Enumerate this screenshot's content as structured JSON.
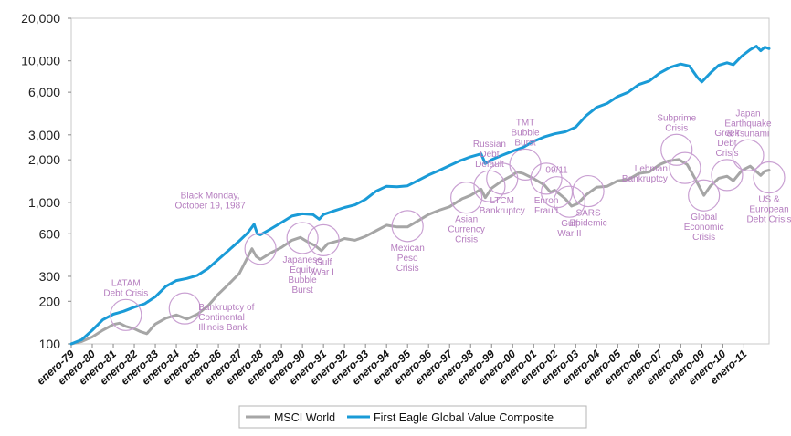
{
  "chart_data": {
    "type": "line",
    "title": "",
    "xlabel": "",
    "ylabel": "",
    "yscale": "log",
    "ylim": [
      100,
      20000
    ],
    "yticks": [
      {
        "value": 100,
        "label": "100"
      },
      {
        "value": 200,
        "label": "200"
      },
      {
        "value": 300,
        "label": "300"
      },
      {
        "value": 600,
        "label": "600"
      },
      {
        "value": 1000,
        "label": "1,000"
      },
      {
        "value": 2000,
        "label": "2,000"
      },
      {
        "value": 3000,
        "label": "3,000"
      },
      {
        "value": 6000,
        "label": "6,000"
      },
      {
        "value": 10000,
        "label": "10,000"
      },
      {
        "value": 20000,
        "label": "20,000"
      }
    ],
    "xlim": [
      1979,
      2012.2
    ],
    "xticks": [
      {
        "value": 1979,
        "label": "enero-79"
      },
      {
        "value": 1980,
        "label": "enero-80"
      },
      {
        "value": 1981,
        "label": "enero-81"
      },
      {
        "value": 1982,
        "label": "enero-82"
      },
      {
        "value": 1983,
        "label": "enero-83"
      },
      {
        "value": 1984,
        "label": "enero-84"
      },
      {
        "value": 1985,
        "label": "enero-85"
      },
      {
        "value": 1986,
        "label": "enero-86"
      },
      {
        "value": 1987,
        "label": "enero-87"
      },
      {
        "value": 1988,
        "label": "enero-88"
      },
      {
        "value": 1989,
        "label": "enero-89"
      },
      {
        "value": 1990,
        "label": "enero-90"
      },
      {
        "value": 1991,
        "label": "enero-91"
      },
      {
        "value": 1992,
        "label": "enero-92"
      },
      {
        "value": 1993,
        "label": "enero-93"
      },
      {
        "value": 1994,
        "label": "enero-94"
      },
      {
        "value": 1995,
        "label": "enero-95"
      },
      {
        "value": 1996,
        "label": "enero-96"
      },
      {
        "value": 1997,
        "label": "enero-97"
      },
      {
        "value": 1998,
        "label": "enero-98"
      },
      {
        "value": 1999,
        "label": "enero-99"
      },
      {
        "value": 2000,
        "label": "enero-00"
      },
      {
        "value": 2001,
        "label": "enero-01"
      },
      {
        "value": 2002,
        "label": "enero-02"
      },
      {
        "value": 2003,
        "label": "enero-03"
      },
      {
        "value": 2004,
        "label": "enero-04"
      },
      {
        "value": 2005,
        "label": "enero-05"
      },
      {
        "value": 2006,
        "label": "enero-06"
      },
      {
        "value": 2007,
        "label": "enero-07"
      },
      {
        "value": 2008,
        "label": "enero-08"
      },
      {
        "value": 2009,
        "label": "enero-09"
      },
      {
        "value": 2010,
        "label": "enero-10"
      },
      {
        "value": 2011,
        "label": "enero-11"
      }
    ],
    "legend": "bottom-center",
    "series": [
      {
        "name": "MSCI World",
        "color": "#a6a6a6",
        "points": [
          [
            1979.0,
            100
          ],
          [
            1979.5,
            104
          ],
          [
            1980.0,
            112
          ],
          [
            1980.5,
            125
          ],
          [
            1981.0,
            137
          ],
          [
            1981.3,
            140
          ],
          [
            1981.6,
            133
          ],
          [
            1982.0,
            128
          ],
          [
            1982.3,
            122
          ],
          [
            1982.6,
            118
          ],
          [
            1983.0,
            138
          ],
          [
            1983.5,
            152
          ],
          [
            1984.0,
            160
          ],
          [
            1984.5,
            150
          ],
          [
            1985.0,
            162
          ],
          [
            1985.5,
            185
          ],
          [
            1986.0,
            225
          ],
          [
            1986.5,
            265
          ],
          [
            1987.0,
            315
          ],
          [
            1987.3,
            385
          ],
          [
            1987.6,
            470
          ],
          [
            1987.8,
            415
          ],
          [
            1988.0,
            395
          ],
          [
            1988.5,
            440
          ],
          [
            1989.0,
            480
          ],
          [
            1989.5,
            540
          ],
          [
            1989.9,
            565
          ],
          [
            1990.3,
            520
          ],
          [
            1990.6,
            495
          ],
          [
            1990.9,
            455
          ],
          [
            1991.2,
            510
          ],
          [
            1991.5,
            525
          ],
          [
            1991.8,
            540
          ],
          [
            1992.0,
            555
          ],
          [
            1992.5,
            540
          ],
          [
            1993.0,
            575
          ],
          [
            1993.5,
            630
          ],
          [
            1994.0,
            690
          ],
          [
            1994.5,
            670
          ],
          [
            1995.0,
            670
          ],
          [
            1995.5,
            740
          ],
          [
            1996.0,
            820
          ],
          [
            1996.5,
            880
          ],
          [
            1997.0,
            930
          ],
          [
            1997.6,
            1060
          ],
          [
            1998.0,
            1120
          ],
          [
            1998.5,
            1240
          ],
          [
            1998.7,
            1080
          ],
          [
            1999.0,
            1260
          ],
          [
            1999.5,
            1420
          ],
          [
            2000.0,
            1560
          ],
          [
            2000.2,
            1640
          ],
          [
            2000.5,
            1600
          ],
          [
            2001.0,
            1470
          ],
          [
            2001.5,
            1330
          ],
          [
            2001.8,
            1180
          ],
          [
            2002.0,
            1220
          ],
          [
            2002.5,
            1060
          ],
          [
            2002.8,
            940
          ],
          [
            2003.1,
            980
          ],
          [
            2003.5,
            1130
          ],
          [
            2004.0,
            1280
          ],
          [
            2004.5,
            1300
          ],
          [
            2005.0,
            1420
          ],
          [
            2005.5,
            1450
          ],
          [
            2006.0,
            1600
          ],
          [
            2006.5,
            1640
          ],
          [
            2007.0,
            1850
          ],
          [
            2007.4,
            1960
          ],
          [
            2007.9,
            2010
          ],
          [
            2008.3,
            1850
          ],
          [
            2008.7,
            1450
          ],
          [
            2009.1,
            1120
          ],
          [
            2009.4,
            1300
          ],
          [
            2009.8,
            1480
          ],
          [
            2010.2,
            1530
          ],
          [
            2010.5,
            1420
          ],
          [
            2010.9,
            1680
          ],
          [
            2011.3,
            1800
          ],
          [
            2011.6,
            1650
          ],
          [
            2011.8,
            1550
          ],
          [
            2012.0,
            1660
          ],
          [
            2012.2,
            1690
          ]
        ]
      },
      {
        "name": "First Eagle Global Value Composite",
        "color": "#1a9bd7",
        "points": [
          [
            1979.0,
            100
          ],
          [
            1979.5,
            107
          ],
          [
            1980.0,
            125
          ],
          [
            1980.5,
            148
          ],
          [
            1981.0,
            162
          ],
          [
            1981.5,
            170
          ],
          [
            1982.0,
            182
          ],
          [
            1982.5,
            192
          ],
          [
            1983.0,
            215
          ],
          [
            1983.5,
            255
          ],
          [
            1984.0,
            280
          ],
          [
            1984.5,
            290
          ],
          [
            1985.0,
            305
          ],
          [
            1985.5,
            340
          ],
          [
            1986.0,
            395
          ],
          [
            1986.5,
            460
          ],
          [
            1987.0,
            535
          ],
          [
            1987.4,
            610
          ],
          [
            1987.7,
            700
          ],
          [
            1987.85,
            600
          ],
          [
            1988.0,
            590
          ],
          [
            1988.5,
            650
          ],
          [
            1989.0,
            720
          ],
          [
            1989.5,
            800
          ],
          [
            1990.0,
            830
          ],
          [
            1990.5,
            820
          ],
          [
            1990.8,
            760
          ],
          [
            1991.0,
            820
          ],
          [
            1991.5,
            870
          ],
          [
            1992.0,
            920
          ],
          [
            1992.5,
            960
          ],
          [
            1993.0,
            1050
          ],
          [
            1993.5,
            1200
          ],
          [
            1994.0,
            1300
          ],
          [
            1994.5,
            1290
          ],
          [
            1995.0,
            1310
          ],
          [
            1995.5,
            1430
          ],
          [
            1996.0,
            1560
          ],
          [
            1996.5,
            1680
          ],
          [
            1997.0,
            1820
          ],
          [
            1997.5,
            1970
          ],
          [
            1998.0,
            2100
          ],
          [
            1998.5,
            2200
          ],
          [
            1998.7,
            1880
          ],
          [
            1999.0,
            2000
          ],
          [
            1999.5,
            2150
          ],
          [
            2000.0,
            2300
          ],
          [
            2000.5,
            2450
          ],
          [
            2001.0,
            2700
          ],
          [
            2001.5,
            2900
          ],
          [
            2002.0,
            3050
          ],
          [
            2002.5,
            3150
          ],
          [
            2003.0,
            3400
          ],
          [
            2003.5,
            4100
          ],
          [
            2004.0,
            4700
          ],
          [
            2004.5,
            5000
          ],
          [
            2005.0,
            5600
          ],
          [
            2005.5,
            6000
          ],
          [
            2006.0,
            6800
          ],
          [
            2006.5,
            7200
          ],
          [
            2007.0,
            8200
          ],
          [
            2007.5,
            9000
          ],
          [
            2008.0,
            9500
          ],
          [
            2008.4,
            9200
          ],
          [
            2008.8,
            7600
          ],
          [
            2009.0,
            7100
          ],
          [
            2009.4,
            8200
          ],
          [
            2009.8,
            9300
          ],
          [
            2010.2,
            9700
          ],
          [
            2010.5,
            9400
          ],
          [
            2010.9,
            10800
          ],
          [
            2011.3,
            12000
          ],
          [
            2011.6,
            12700
          ],
          [
            2011.8,
            11800
          ],
          [
            2012.0,
            12500
          ],
          [
            2012.2,
            12200
          ]
        ]
      }
    ],
    "annotations": [
      {
        "id": "latam",
        "lines": [
          "LATAM",
          "Debt Crisis"
        ],
        "x": 1981.6,
        "y": 160,
        "label_pos": "above"
      },
      {
        "id": "continental",
        "lines": [
          "Bankruptcy of",
          "Continental",
          "Illinois Bank"
        ],
        "x": 1984.4,
        "y": 178,
        "label_pos": "right"
      },
      {
        "id": "black-monday",
        "lines": [
          "Black Monday,",
          "October 19, 1987"
        ],
        "x": 1988.0,
        "y": 470,
        "label_pos": "left-above"
      },
      {
        "id": "japanese-bubble",
        "lines": [
          "Japanese",
          "Equity",
          "Bubble",
          "Burst"
        ],
        "x": 1990.0,
        "y": 560,
        "label_pos": "below"
      },
      {
        "id": "gulf-war-1",
        "lines": [
          "Gulf",
          "War I"
        ],
        "x": 1991.0,
        "y": 540,
        "label_pos": "below"
      },
      {
        "id": "mexican-peso",
        "lines": [
          "Mexican",
          "Peso",
          "Crisis"
        ],
        "x": 1995.0,
        "y": 680,
        "label_pos": "below"
      },
      {
        "id": "asian-currency",
        "lines": [
          "Asian",
          "Currency",
          "Crisis"
        ],
        "x": 1997.8,
        "y": 1080,
        "label_pos": "below"
      },
      {
        "id": "russian-default",
        "lines": [
          "Russian",
          "Debt",
          "Default"
        ],
        "x": 1998.9,
        "y": 1300,
        "label_pos": "above"
      },
      {
        "id": "ltcm",
        "lines": [
          "LTCM",
          "Bankruptcy"
        ],
        "x": 1999.5,
        "y": 1470,
        "label_pos": "below"
      },
      {
        "id": "tmt-bubble",
        "lines": [
          "TMT",
          "Bubble",
          "Burst"
        ],
        "x": 2000.6,
        "y": 1850,
        "label_pos": "above"
      },
      {
        "id": "enron",
        "lines": [
          "Enron",
          "Fraud"
        ],
        "x": 2001.6,
        "y": 1470,
        "label_pos": "below"
      },
      {
        "id": "sept-11",
        "lines": [
          "09/11"
        ],
        "x": 2002.1,
        "y": 1180,
        "label_pos": "above"
      },
      {
        "id": "gulf-war-2",
        "lines": [
          "Gulf",
          "War II"
        ],
        "x": 2002.7,
        "y": 1010,
        "label_pos": "below"
      },
      {
        "id": "sars",
        "lines": [
          "SARS",
          "Epidemic"
        ],
        "x": 2003.6,
        "y": 1200,
        "label_pos": "below"
      },
      {
        "id": "subprime",
        "lines": [
          "Subprime",
          "Crisis"
        ],
        "x": 2007.8,
        "y": 2350,
        "label_pos": "above"
      },
      {
        "id": "lehman",
        "lines": [
          "Lehman",
          "Bankruptcy"
        ],
        "x": 2008.2,
        "y": 1750,
        "label_pos": "left"
      },
      {
        "id": "global-economic",
        "lines": [
          "Global",
          "Economic",
          "Crisis"
        ],
        "x": 2009.1,
        "y": 1120,
        "label_pos": "below"
      },
      {
        "id": "greek-debt",
        "lines": [
          "Greek",
          "Debt",
          "Crisis"
        ],
        "x": 2010.2,
        "y": 1560,
        "label_pos": "above"
      },
      {
        "id": "japan-earthquake",
        "lines": [
          "Japan",
          "Earthquake",
          "& Tsunami"
        ],
        "x": 2011.2,
        "y": 2150,
        "label_pos": "above"
      },
      {
        "id": "us-european-debt",
        "lines": [
          "US &",
          "European",
          "Debt Crisis"
        ],
        "x": 2012.2,
        "y": 1500,
        "label_pos": "below"
      }
    ]
  }
}
